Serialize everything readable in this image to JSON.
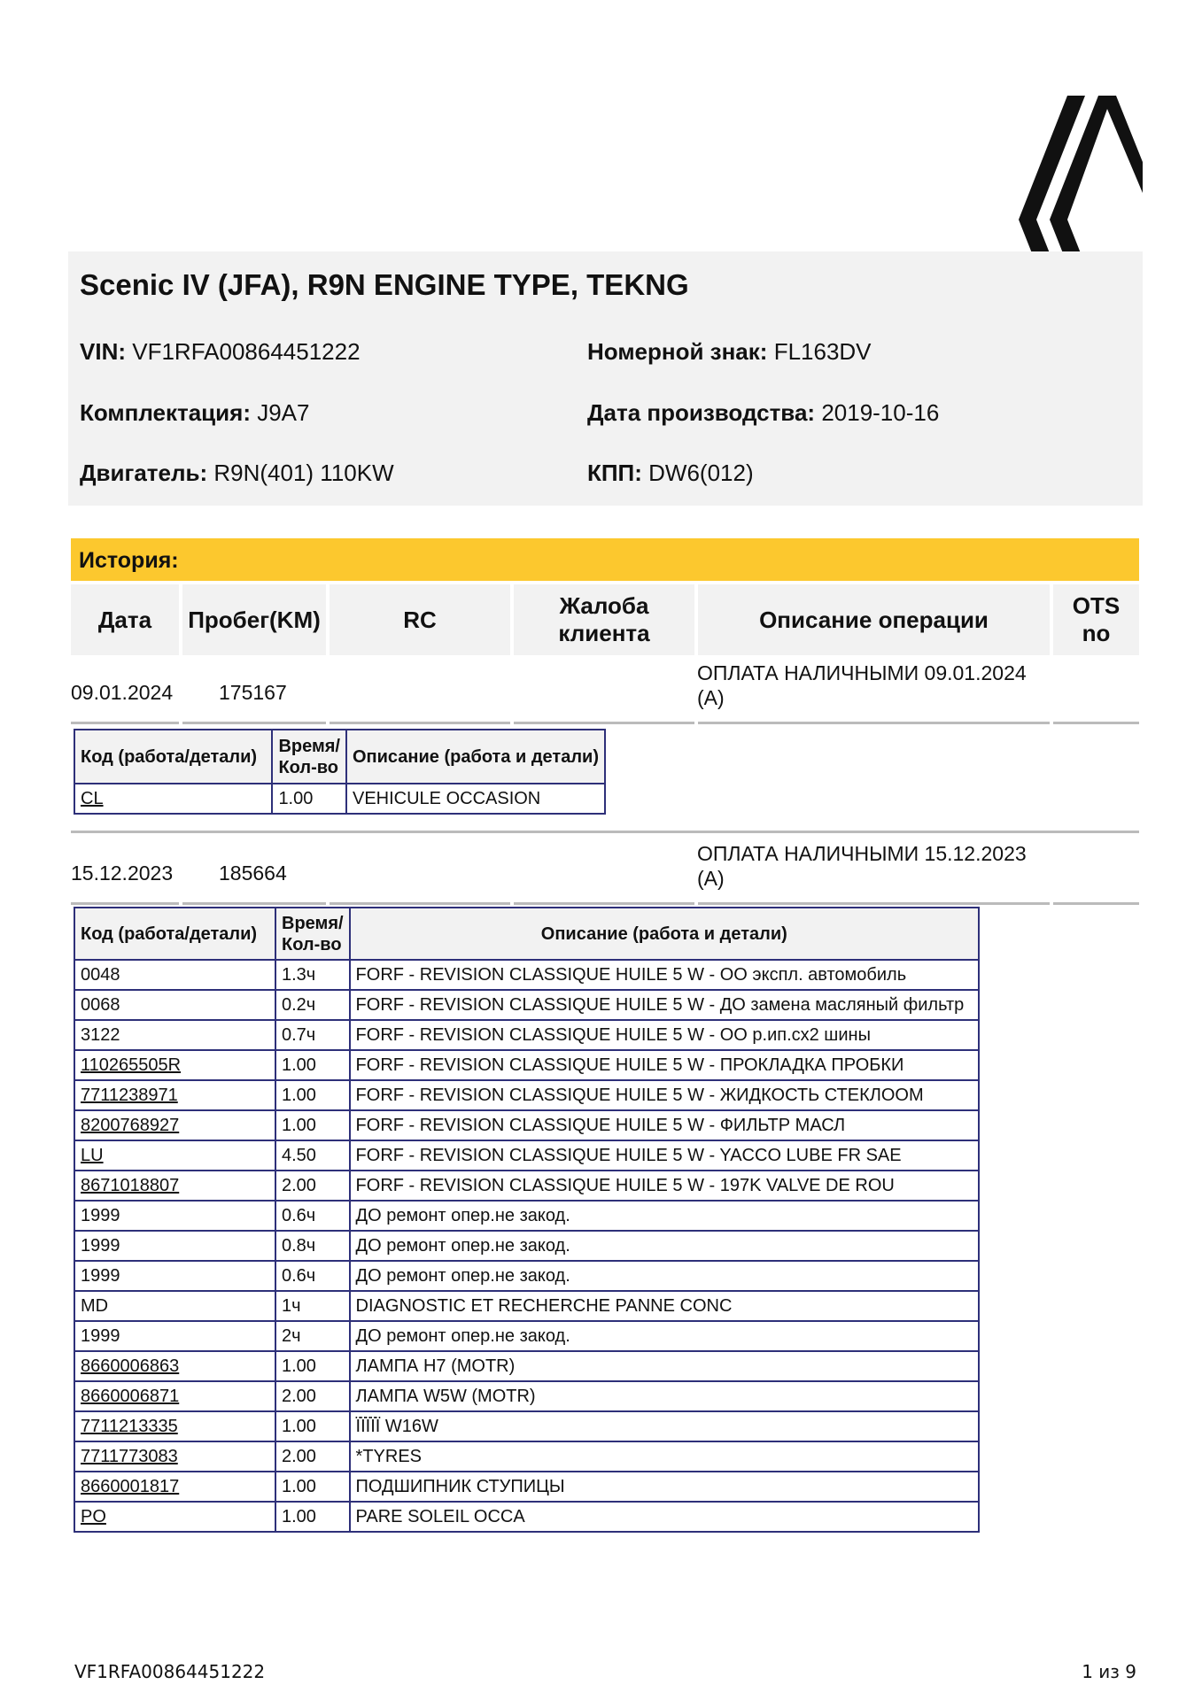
{
  "vehicle": {
    "title": "Scenic IV (JFA), R9N ENGINE TYPE, TEKNG",
    "vin_label": "VIN:",
    "vin": "VF1RFA00864451222",
    "plate_label": "Номерной знак:",
    "plate": "FL163DV",
    "trim_label": "Комплектация:",
    "trim": "J9A7",
    "prod_date_label": "Дата производства:",
    "prod_date": "2019-10-16",
    "engine_label": "Двигатель:",
    "engine": "R9N(401) 110KW",
    "gearbox_label": "КПП:",
    "gearbox": "DW6(012)"
  },
  "history": {
    "title": "История:",
    "accent_color": "#fcc82e",
    "columns": [
      "Дата",
      "Пробег(KM)",
      "RC",
      "Жалоба клиента",
      "Описание операции",
      "OTS no"
    ],
    "sub_columns": [
      "Код (работа/детали)",
      "Время/ Кол-во",
      "Описание (работа и детали)"
    ],
    "entries": [
      {
        "date": "09.01.2024",
        "mileage": "175167",
        "operation": "ОПЛАТА НАЛИЧНЫМИ 09.01.2024 (A)",
        "lines": [
          {
            "code": "CL",
            "link": true,
            "qty": "1.00",
            "desc": "VEHICULE OCCASION"
          }
        ]
      },
      {
        "date": "15.12.2023",
        "mileage": "185664",
        "operation": "ОПЛАТА НАЛИЧНЫМИ 15.12.2023 (A)",
        "lines": [
          {
            "code": "0048",
            "link": false,
            "qty": "1.3ч",
            "desc": "FORF - REVISION CLASSIQUE HUILE 5 W - ОО экспл. автомобиль"
          },
          {
            "code": "0068",
            "link": false,
            "qty": "0.2ч",
            "desc": "FORF - REVISION CLASSIQUE HUILE 5 W - ДО замена масляный фильтр"
          },
          {
            "code": "3122",
            "link": false,
            "qty": "0.7ч",
            "desc": "FORF - REVISION CLASSIQUE HUILE 5 W - ОО р.ип.сх2 шины"
          },
          {
            "code": "110265505R",
            "link": true,
            "qty": "1.00",
            "desc": "FORF - REVISION CLASSIQUE HUILE 5 W - ПРОКЛАДКА ПРОБКИ"
          },
          {
            "code": "7711238971",
            "link": true,
            "qty": "1.00",
            "desc": "FORF - REVISION CLASSIQUE HUILE 5 W - ЖИДКОСТЬ СТЕКЛООМ"
          },
          {
            "code": "8200768927",
            "link": true,
            "qty": "1.00",
            "desc": "FORF - REVISION CLASSIQUE HUILE 5 W - ФИЛЬТР МАСЛ"
          },
          {
            "code": "LU",
            "link": true,
            "qty": "4.50",
            "desc": "FORF - REVISION CLASSIQUE HUILE 5 W - YACCO LUBE FR SAE"
          },
          {
            "code": "8671018807",
            "link": true,
            "qty": "2.00",
            "desc": "FORF - REVISION CLASSIQUE HUILE 5 W - 197K VALVE DE ROU"
          },
          {
            "code": "1999",
            "link": false,
            "qty": "0.6ч",
            "desc": "ДО ремонт опер.не закод."
          },
          {
            "code": "1999",
            "link": false,
            "qty": "0.8ч",
            "desc": "ДО ремонт опер.не закод."
          },
          {
            "code": "1999",
            "link": false,
            "qty": "0.6ч",
            "desc": "ДО ремонт опер.не закод."
          },
          {
            "code": "MD",
            "link": false,
            "qty": "1ч",
            "desc": "DIAGNOSTIC ET RECHERCHE PANNE CONC"
          },
          {
            "code": "1999",
            "link": false,
            "qty": "2ч",
            "desc": "ДО ремонт опер.не закод."
          },
          {
            "code": "8660006863",
            "link": true,
            "qty": "1.00",
            "desc": "ЛАМПА H7 (MOTR)"
          },
          {
            "code": "8660006871",
            "link": true,
            "qty": "2.00",
            "desc": "ЛАМПА W5W (MOTR)"
          },
          {
            "code": "7711213335",
            "link": true,
            "qty": "1.00",
            "desc": "ÏÏÏÏÏ W16W"
          },
          {
            "code": "7711773083",
            "link": true,
            "qty": "2.00",
            "desc": "*TYRES"
          },
          {
            "code": "8660001817",
            "link": true,
            "qty": "1.00",
            "desc": "ПОДШИПНИК СТУПИЦЫ"
          },
          {
            "code": "PO",
            "link": true,
            "qty": "1.00",
            "desc": "PARE SOLEIL OCCA"
          }
        ]
      }
    ]
  },
  "footer": {
    "vin": "VF1RFA00864451222",
    "page": "1 из 9"
  }
}
